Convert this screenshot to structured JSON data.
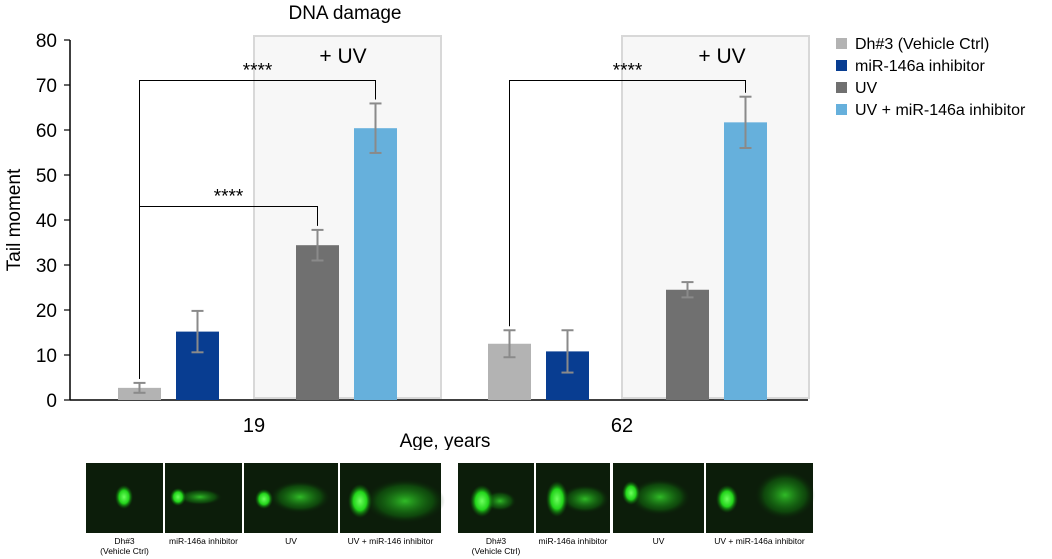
{
  "chart_data": {
    "type": "bar",
    "title": "DNA damage",
    "xlabel": "Age, years",
    "ylabel": "Tail moment",
    "ylim": [
      0,
      80
    ],
    "yticks": [
      0,
      10,
      20,
      30,
      40,
      50,
      60,
      70,
      80
    ],
    "categories": [
      "19",
      "62"
    ],
    "legend_position": "right",
    "series": [
      {
        "name": "Dh#3 (Vehicle Ctrl)",
        "color": "#b3b3b3",
        "values": [
          2.7,
          12.5
        ],
        "errors": [
          1.1,
          3.0
        ]
      },
      {
        "name": "miR-146a inhibitor",
        "color": "#083d91",
        "values": [
          15.2,
          10.8
        ],
        "errors": [
          4.6,
          4.7
        ]
      },
      {
        "name": "UV",
        "color": "#707070",
        "values": [
          34.4,
          24.5
        ],
        "errors": [
          3.4,
          1.7
        ]
      },
      {
        "name": "UV + miR-146a inhibitor",
        "color": "#66b0dc",
        "values": [
          60.4,
          61.7
        ],
        "errors": [
          5.5,
          5.7
        ]
      }
    ],
    "uv_box_label": "+ UV",
    "significance": [
      {
        "group": "19",
        "from_series": 0,
        "to_series": 3,
        "label": "****",
        "level": 71
      },
      {
        "group": "19",
        "from_series": 0,
        "to_series": 2,
        "label": "****",
        "level": 43
      },
      {
        "group": "62",
        "from_series": 0,
        "to_series": 3,
        "label": "****",
        "level": 71
      }
    ]
  },
  "micrographs": {
    "group_19": [
      "Dh#3 (Vehicle Ctrl)",
      "miR-146a inhibitor",
      "UV",
      "UV + miR-146 inhibitor"
    ],
    "group_62": [
      "Dh#3 (Vehicle Ctrl)",
      "miR-146a inhibitor",
      "UV",
      "UV + miR-146a inhibitor"
    ]
  }
}
